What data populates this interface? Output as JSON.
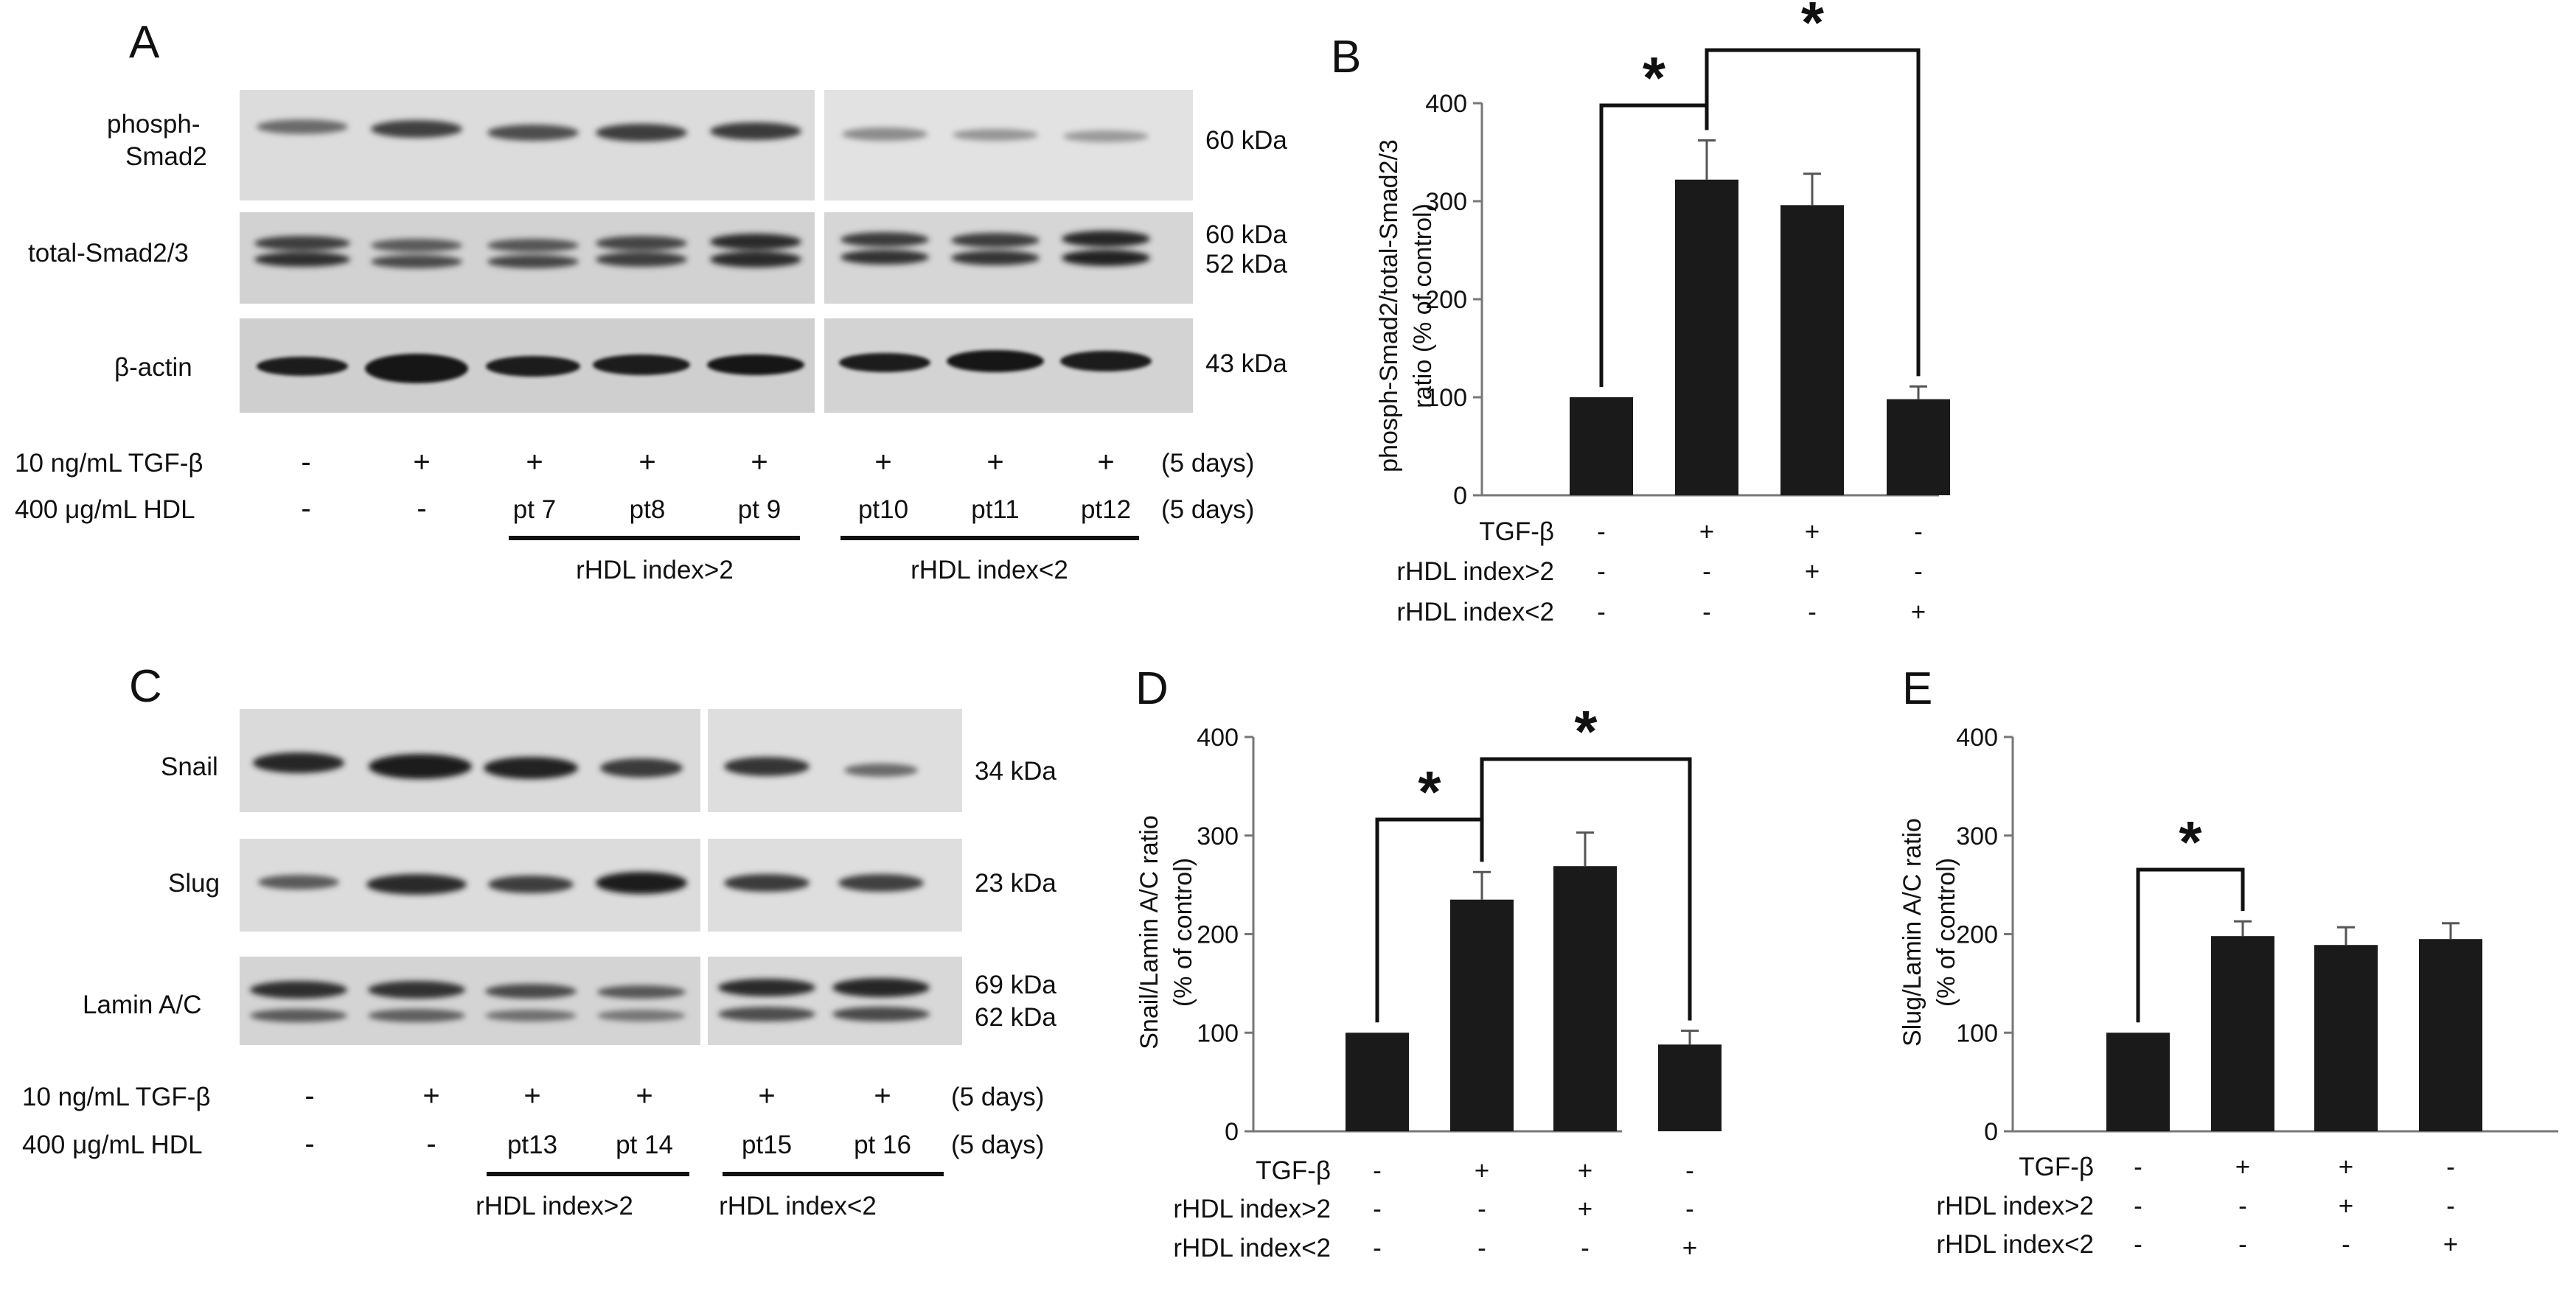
{
  "panelA": {
    "letter": "A",
    "rows": [
      {
        "label_lines": [
          "phosph-",
          "Smad2"
        ],
        "size": "60 kDa"
      },
      {
        "label_lines": [
          "total-Smad2/3"
        ],
        "size_lines": [
          "60 kDa",
          "52 kDa"
        ]
      },
      {
        "label_lines": [
          "β-actin"
        ],
        "size": "43 kDa"
      }
    ],
    "treat": {
      "row1_label": "10 ng/mL TGF-β",
      "row2_label": "400 μg/mL HDL",
      "row1": [
        "-",
        "+",
        "+",
        "+",
        "+",
        "+",
        "+",
        "+"
      ],
      "row2": [
        "-",
        "-",
        "pt 7",
        "pt8",
        "pt 9",
        "pt10",
        "pt11",
        "pt12"
      ],
      "days": "(5 days)",
      "group1": "rHDL index>2",
      "group2": "rHDL index<2"
    }
  },
  "panelC": {
    "letter": "C",
    "rows": [
      {
        "label_lines": [
          "Snail"
        ],
        "size": "34 kDa"
      },
      {
        "label_lines": [
          "Slug"
        ],
        "size": "23 kDa"
      },
      {
        "label_lines": [
          "Lamin A/C"
        ],
        "size_lines": [
          "69 kDa",
          "62 kDa"
        ]
      }
    ],
    "treat": {
      "row1_label": "10 ng/mL TGF-β",
      "row2_label": "400 μg/mL HDL",
      "row1": [
        "-",
        "+",
        "+",
        "+",
        "+",
        "+"
      ],
      "row2": [
        "-",
        "-",
        "pt13",
        "pt 14",
        "pt15",
        "pt 16"
      ],
      "days": "(5 days)",
      "group1": "rHDL index>2",
      "group2": "rHDL index<2"
    }
  },
  "chart_data": [
    {
      "panel": "B",
      "type": "bar",
      "ylabel_lines": [
        "phosph-Smad2/total-Smad2/3",
        "ratio (% of control)"
      ],
      "ylim": [
        0,
        400
      ],
      "yticks": [
        "0",
        "100",
        "200",
        "300",
        "400"
      ],
      "values": [
        100,
        322,
        296,
        98
      ],
      "errors": [
        0,
        40,
        32,
        13
      ],
      "conditions": {
        "labels": [
          "TGF-β",
          "rHDL index>2",
          "rHDL index<2"
        ],
        "rows": [
          [
            "-",
            "+",
            "+",
            "-"
          ],
          [
            "-",
            "-",
            "+",
            "-"
          ],
          [
            "-",
            "-",
            "-",
            "+"
          ]
        ]
      },
      "significance": [
        {
          "from": 0,
          "to": 1,
          "mark": "*"
        },
        {
          "from": 1,
          "to": 3,
          "mark": "*"
        }
      ],
      "bar_color": "#1a1a1a"
    },
    {
      "panel": "D",
      "type": "bar",
      "ylabel_lines": [
        "Snail/Lamin A/C ratio",
        "(% of control)"
      ],
      "ylim": [
        0,
        400
      ],
      "yticks": [
        "0",
        "100",
        "200",
        "300",
        "400"
      ],
      "values": [
        100,
        235,
        269,
        88
      ],
      "errors": [
        0,
        28,
        34,
        14
      ],
      "conditions": {
        "labels": [
          "TGF-β",
          "rHDL index>2",
          "rHDL index<2"
        ],
        "rows": [
          [
            "-",
            "+",
            "+",
            "-"
          ],
          [
            "-",
            "-",
            "+",
            "-"
          ],
          [
            "-",
            "-",
            "-",
            "+"
          ]
        ]
      },
      "significance": [
        {
          "from": 0,
          "to": 1,
          "mark": "*"
        },
        {
          "from": 1,
          "to": 3,
          "mark": "*"
        }
      ],
      "bar_color": "#1a1a1a"
    },
    {
      "panel": "E",
      "type": "bar",
      "ylabel_lines": [
        "Slug/Lamin A/C ratio",
        "(% of control)"
      ],
      "ylim": [
        0,
        400
      ],
      "yticks": [
        "0",
        "100",
        "200",
        "300",
        "400"
      ],
      "values": [
        100,
        198,
        189,
        195
      ],
      "errors": [
        0,
        15,
        18,
        16
      ],
      "conditions": {
        "labels": [
          "TGF-β",
          "rHDL index>2",
          "rHDL index<2"
        ],
        "rows": [
          [
            "-",
            "+",
            "+",
            "-"
          ],
          [
            "-",
            "-",
            "+",
            "-"
          ],
          [
            "-",
            "-",
            "-",
            "+"
          ]
        ]
      },
      "significance": [
        {
          "from": 0,
          "to": 1,
          "mark": "*"
        }
      ],
      "bar_color": "#1a1a1a"
    }
  ]
}
